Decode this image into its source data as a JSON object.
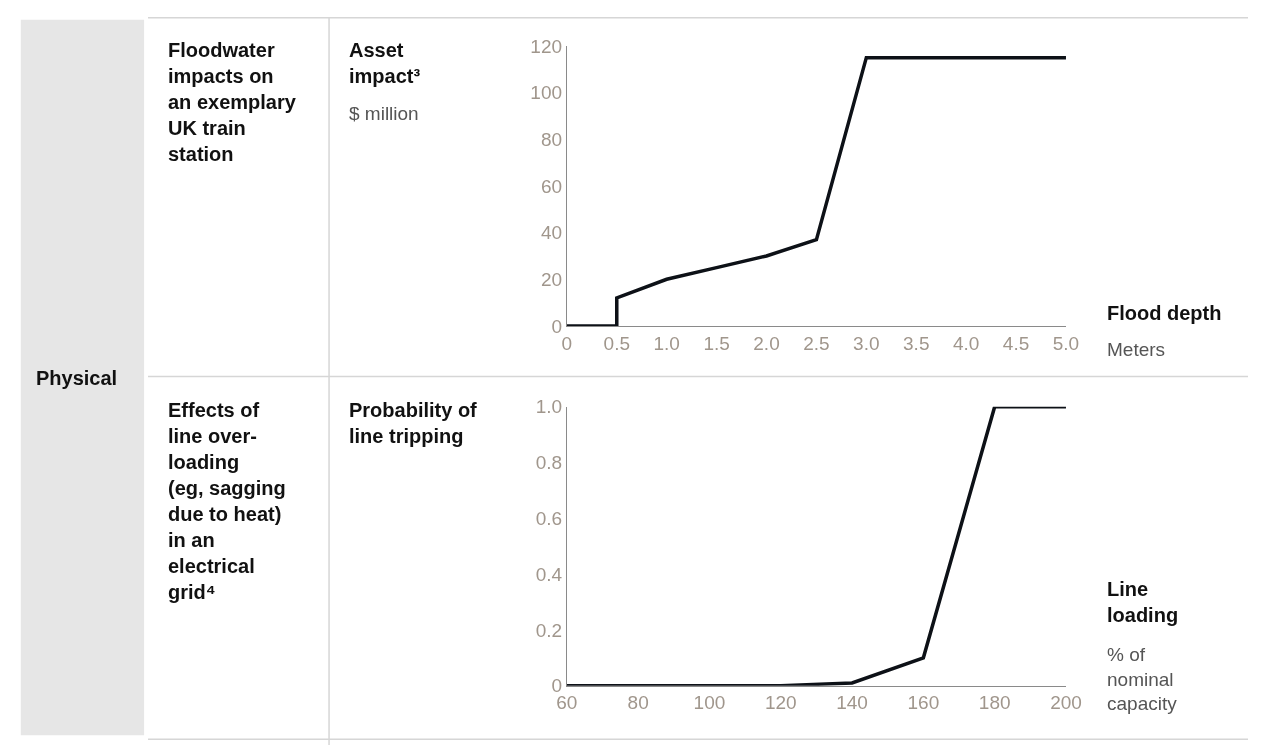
{
  "chart_data": [
    {
      "type": "line",
      "ylabel": "Asset impact³",
      "xlabel": "Flood depth",
      "annotations": [
        "Floodwater impacts on an exemplary UK train station",
        "$ million",
        "Meters",
        "Physical"
      ],
      "x": [
        0,
        0.5,
        0.5,
        1.0,
        1.5,
        2.0,
        2.5,
        3.0,
        5.0
      ],
      "series": [
        {
          "color": "#0d1117",
          "values": [
            0,
            0,
            12,
            20,
            25,
            30,
            37,
            115,
            115
          ]
        }
      ],
      "xlim": [
        0,
        5
      ],
      "xticks": [
        0,
        0.5,
        {
          "value": 1,
          "label": "1.0"
        },
        1.5,
        {
          "value": 2,
          "label": "2.0"
        },
        2.5,
        {
          "value": 3,
          "label": "3.0"
        },
        3.5,
        {
          "value": 4,
          "label": "4.0"
        },
        4.5,
        {
          "value": 5,
          "label": "5.0"
        }
      ],
      "ylim": [
        0,
        120
      ],
      "yticks": [
        0,
        20,
        40,
        60,
        80,
        100,
        120
      ],
      "marker": "none",
      "line_style": "solid"
    },
    {
      "type": "line",
      "ylabel": "Probability of line tripping",
      "xlabel": "Line loading",
      "annotations": [
        "Effects of line over-loading (eg, sagging due to heat) in an electrical grid⁴",
        "% of nominal capacity"
      ],
      "x": [
        60,
        80,
        100,
        120,
        140,
        160,
        180,
        200
      ],
      "series": [
        {
          "color": "#0d1117",
          "values": [
            0,
            0,
            0,
            0,
            0.01,
            0.1,
            1.0,
            1.0
          ]
        }
      ],
      "xlim": [
        60,
        200
      ],
      "xticks": [
        60,
        80,
        100,
        120,
        140,
        160,
        180,
        200
      ],
      "ylim": [
        0,
        1
      ],
      "yticks": [
        0,
        0.2,
        0.4,
        0.6,
        0.8,
        {
          "value": 1,
          "label": "1.0"
        }
      ],
      "marker": "none",
      "line_style": "solid"
    }
  ]
}
